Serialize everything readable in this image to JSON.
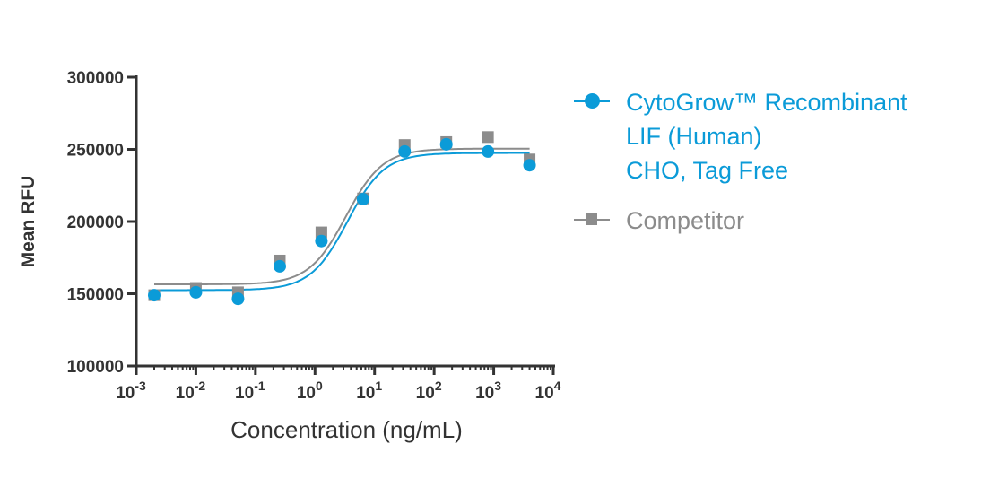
{
  "chart_data": {
    "type": "scatter",
    "xlabel": "Concentration (ng/mL)",
    "ylabel": "Mean RFU",
    "xscale": "log",
    "xlim": [
      0.001,
      10000
    ],
    "ylim": [
      100000,
      300000
    ],
    "xticks": [
      {
        "base": "10",
        "exp": "-3"
      },
      {
        "base": "10",
        "exp": "-2"
      },
      {
        "base": "10",
        "exp": "-1"
      },
      {
        "base": "10",
        "exp": "0"
      },
      {
        "base": "10",
        "exp": "1"
      },
      {
        "base": "10",
        "exp": "2"
      },
      {
        "base": "10",
        "exp": "3"
      },
      {
        "base": "10",
        "exp": "4"
      }
    ],
    "yticks": [
      "100000",
      "150000",
      "200000",
      "250000",
      "300000"
    ],
    "legend_position": "right",
    "grid": false,
    "series": [
      {
        "name_lines": [
          "CytoGrow™ Recombinant",
          "LIF (Human)",
          "CHO, Tag Free"
        ],
        "color": "#0b9bd8",
        "marker": "circle",
        "x": [
          0.002,
          0.01,
          0.051,
          0.256,
          1.28,
          6.4,
          32,
          160,
          800,
          4000
        ],
        "y": [
          149000,
          151000,
          146500,
          169000,
          186500,
          215500,
          248500,
          253500,
          248500,
          239000
        ],
        "fit": {
          "bottom": 152500,
          "top": 247500,
          "ec50": 3.5,
          "hill": 1.4
        }
      },
      {
        "name_lines": [
          "Competitor"
        ],
        "color": "#8c8c8c",
        "marker": "square",
        "x": [
          0.002,
          0.01,
          0.051,
          0.256,
          1.28,
          6.4,
          32,
          160,
          800,
          4000
        ],
        "y": [
          149000,
          154000,
          151000,
          173000,
          192500,
          216000,
          253000,
          255000,
          258500,
          243000
        ],
        "fit": {
          "bottom": 156500,
          "top": 250500,
          "ec50": 3.3,
          "hill": 1.4
        }
      }
    ]
  }
}
